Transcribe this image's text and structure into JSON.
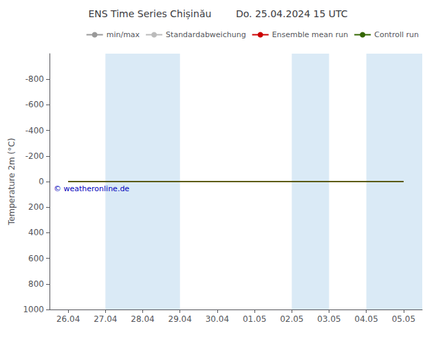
{
  "chart_data": {
    "type": "line",
    "title": "ENS Time Series Chișinău        Do. 25.04.2024 15 UTC",
    "y_label": "Temperature 2m (°C)",
    "categories": [
      "26.04",
      "27.04",
      "28.04",
      "29.04",
      "30.04",
      "01.05",
      "02.05",
      "03.05",
      "04.05",
      "05.05"
    ],
    "series": [
      {
        "name": "min/max",
        "color": "#999999",
        "values": [
          null,
          null,
          null,
          null,
          null,
          null,
          null,
          null,
          null,
          null
        ]
      },
      {
        "name": "Standardabweichung",
        "color": "#bbbbbb",
        "values": [
          null,
          null,
          null,
          null,
          null,
          null,
          null,
          null,
          null,
          null
        ]
      },
      {
        "name": "Ensemble mean run",
        "color": "#cc0000",
        "values": [
          0,
          0,
          0,
          0,
          0,
          0,
          0,
          0,
          0,
          0
        ]
      },
      {
        "name": "Controll run",
        "color": "#336600",
        "values": [
          0,
          0,
          0,
          0,
          0,
          0,
          0,
          0,
          0,
          0
        ]
      }
    ],
    "bands": [
      {
        "from": "27.04",
        "to": "29.04",
        "color": "#daeaf6"
      },
      {
        "from": "02.05",
        "to": "03.05",
        "color": "#daeaf6"
      },
      {
        "from": "04.05",
        "to": null,
        "color": "#daeaf6"
      }
    ],
    "annotations": [
      {
        "text": "© weatheronline.de",
        "color": "#0000bb"
      }
    ],
    "ylim": [
      1000,
      -1000
    ],
    "yticks": [
      -800,
      -600,
      -400,
      -200,
      0,
      200,
      400,
      600,
      800,
      1000
    ],
    "grid": false,
    "legend": "upper right"
  }
}
